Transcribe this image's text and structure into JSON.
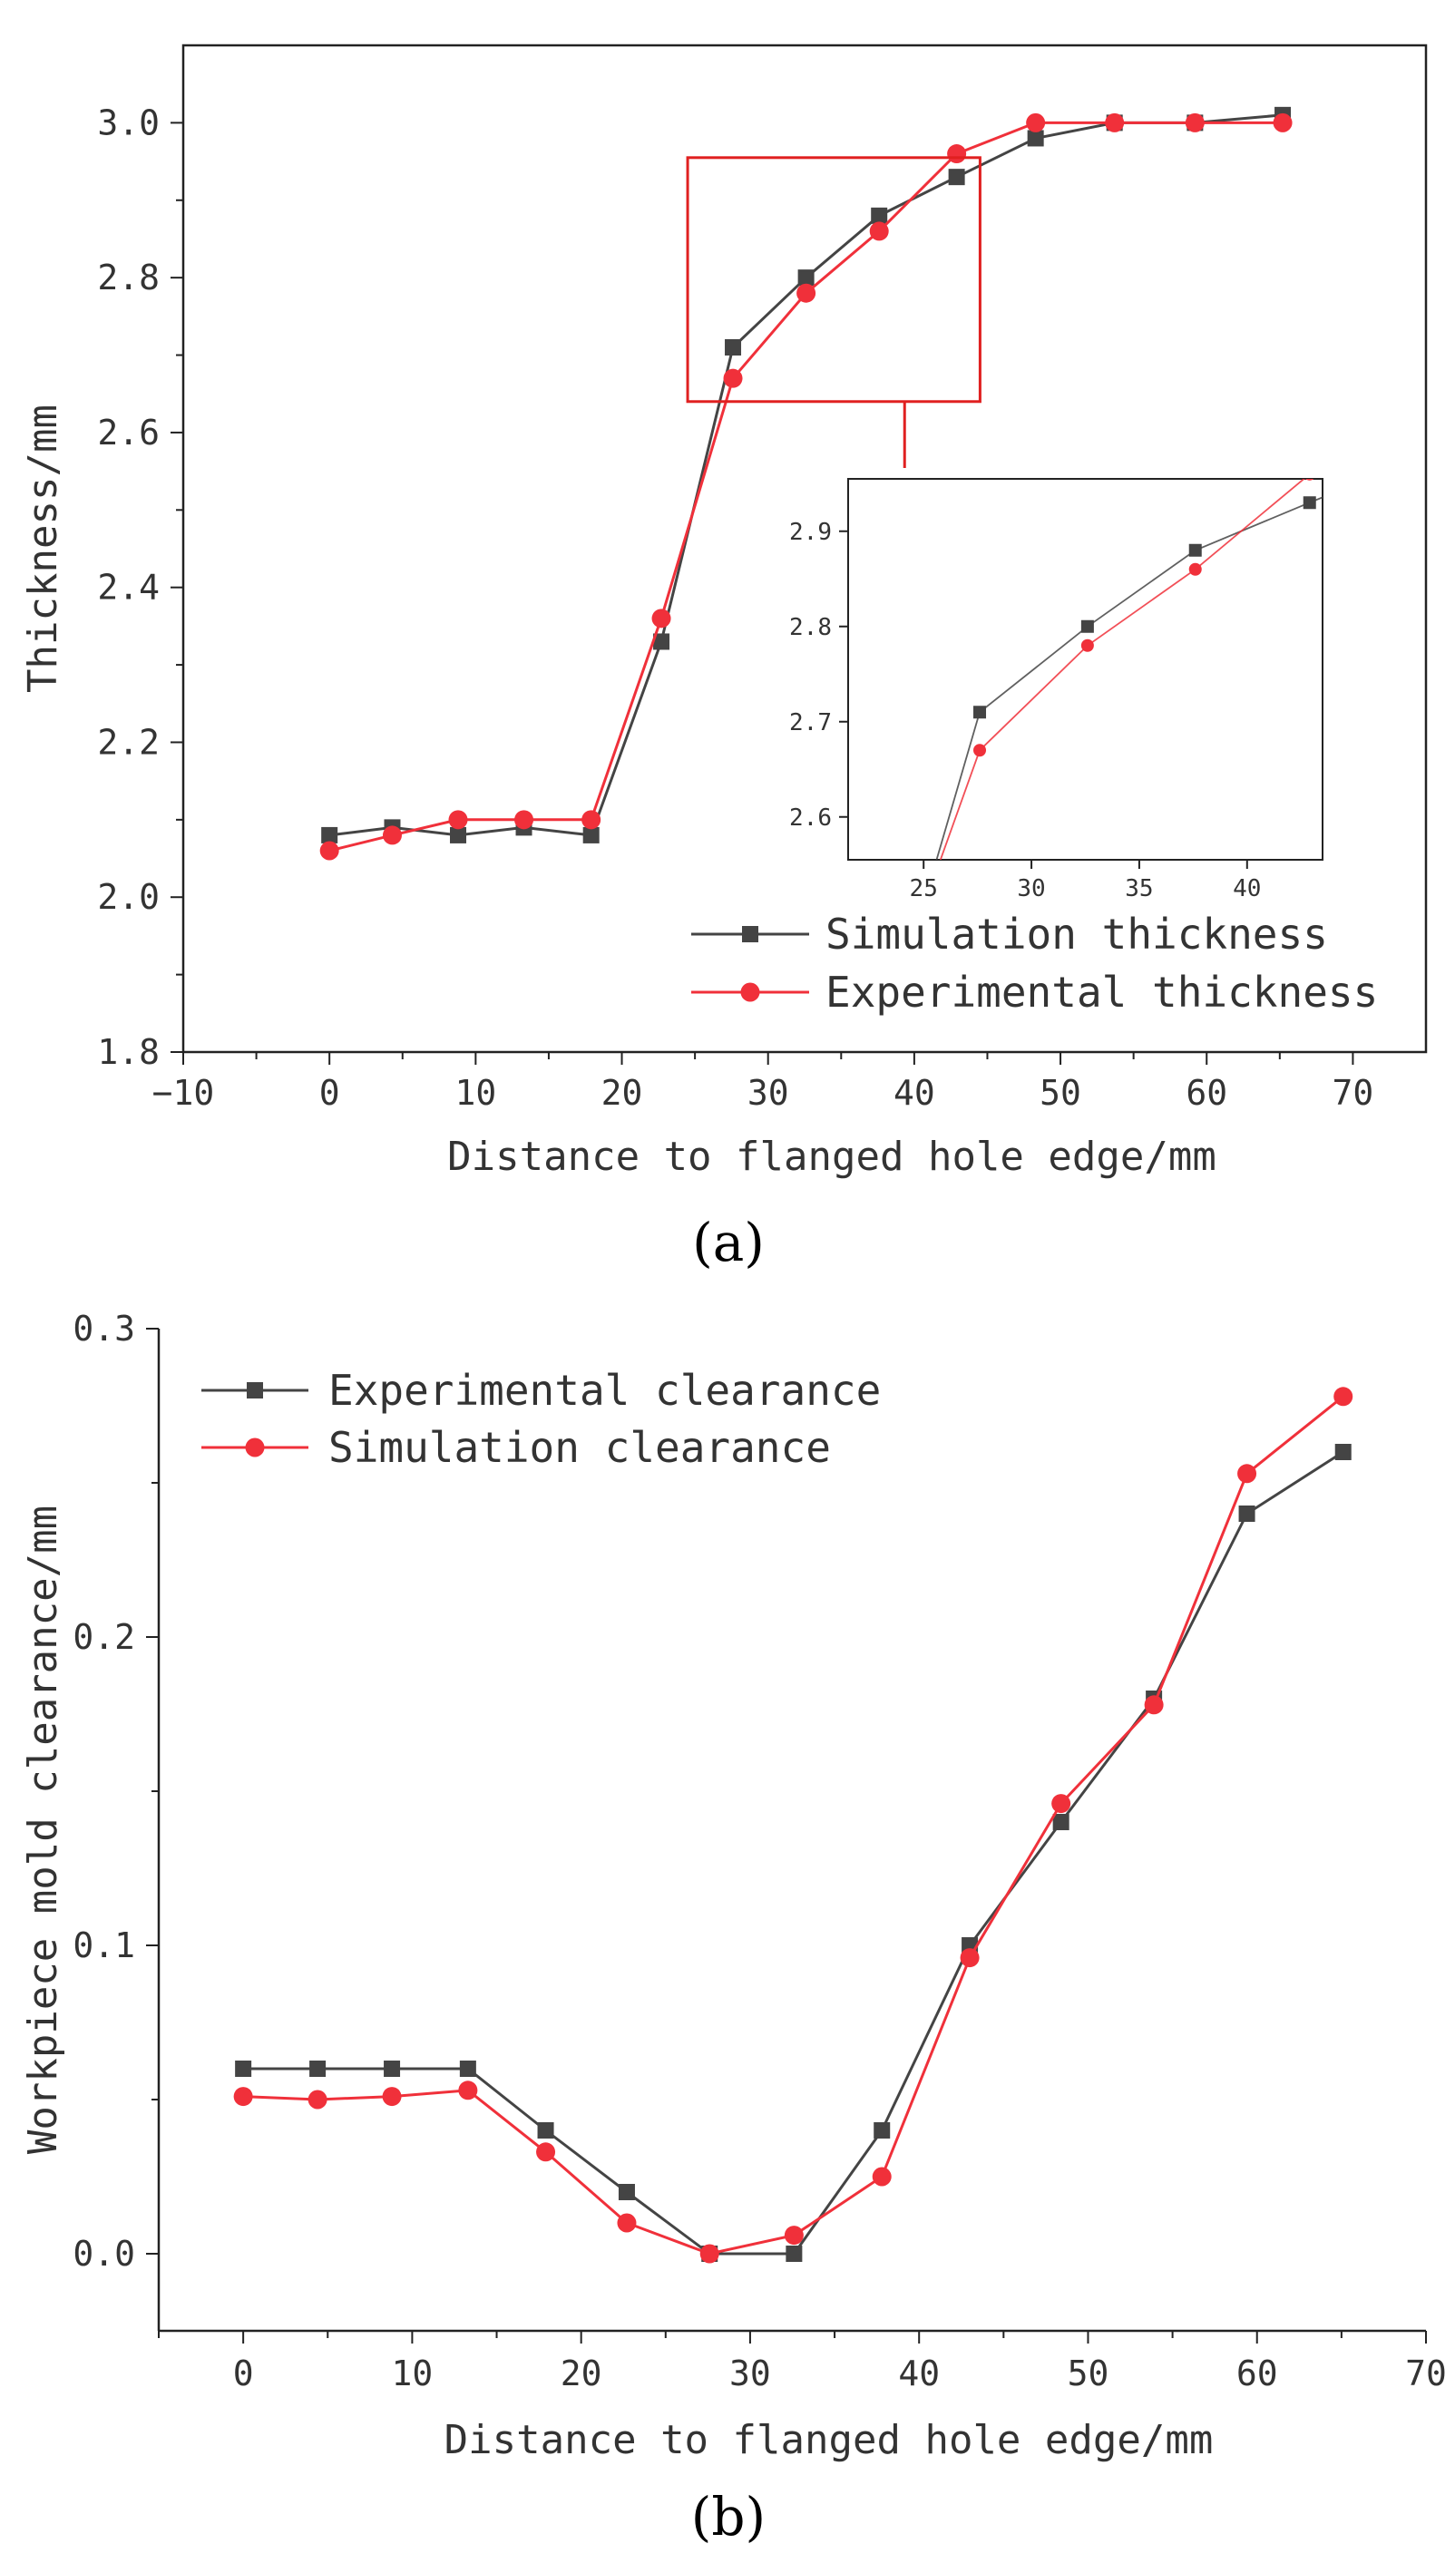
{
  "figure_captions": {
    "a": "(a)",
    "b": "(b)"
  },
  "colors": {
    "simulation": "#444444",
    "experimental": "#f0303a",
    "inset_box": "#e02020",
    "axis": "#222222"
  },
  "chart_data": [
    {
      "id": "a",
      "type": "line",
      "xlabel": "Distance to flanged hole edge/mm",
      "ylabel": "Thickness/mm",
      "xlim": [
        -10,
        75
      ],
      "ylim": [
        1.8,
        3.1
      ],
      "xticks": [
        -10,
        0,
        10,
        20,
        30,
        40,
        50,
        60,
        70
      ],
      "yticks": [
        1.8,
        2.0,
        2.2,
        2.4,
        2.6,
        2.8,
        3.0
      ],
      "xtick_labels": [
        "−10",
        "0",
        "10",
        "20",
        "30",
        "40",
        "50",
        "60",
        "70"
      ],
      "ytick_labels": [
        "1.8",
        "2.0",
        "2.2",
        "2.4",
        "2.6",
        "2.8",
        "3.0"
      ],
      "legend_position": "bottom-right",
      "series": [
        {
          "name": "Simulation thickness",
          "marker": "square",
          "x": [
            0,
            4.3,
            8.8,
            13.3,
            17.9,
            22.7,
            27.6,
            32.6,
            37.6,
            42.9,
            48.3,
            53.7,
            59.2,
            65.2
          ],
          "y": [
            2.08,
            2.09,
            2.08,
            2.09,
            2.08,
            2.33,
            2.71,
            2.8,
            2.88,
            2.93,
            2.98,
            3.0,
            3.0,
            3.01
          ]
        },
        {
          "name": "Experimental thickness",
          "marker": "circle",
          "x": [
            0,
            4.3,
            8.8,
            13.3,
            17.9,
            22.7,
            27.6,
            32.6,
            37.6,
            42.9,
            48.3,
            53.7,
            59.2,
            65.2
          ],
          "y": [
            2.06,
            2.08,
            2.1,
            2.1,
            2.1,
            2.36,
            2.67,
            2.78,
            2.86,
            2.96,
            3.0,
            3.0,
            3.0,
            3.0
          ]
        }
      ],
      "inset": {
        "xlim": [
          21.5,
          43.5
        ],
        "ylim": [
          2.555,
          2.955
        ],
        "xticks": [
          25,
          30,
          35,
          40
        ],
        "yticks": [
          2.6,
          2.7,
          2.8,
          2.9
        ],
        "xtick_labels": [
          "25",
          "30",
          "35",
          "40"
        ],
        "ytick_labels": [
          "2.6",
          "2.7",
          "2.8",
          "2.9"
        ],
        "zoom_region": {
          "x": [
            24.5,
            44.5
          ],
          "y": [
            2.64,
            2.955
          ]
        }
      }
    },
    {
      "id": "b",
      "type": "line",
      "xlabel": "Distance to flanged hole edge/mm",
      "ylabel": "Workpiece mold clearance/mm",
      "xlim": [
        -5,
        70
      ],
      "ylim": [
        -0.025,
        0.3
      ],
      "xticks": [
        0,
        10,
        20,
        30,
        40,
        50,
        60,
        70
      ],
      "yticks": [
        0.0,
        0.1,
        0.2,
        0.3
      ],
      "xtick_labels": [
        "0",
        "10",
        "20",
        "30",
        "40",
        "50",
        "60",
        "70"
      ],
      "ytick_labels": [
        "0.0",
        "0.1",
        "0.2",
        "0.3"
      ],
      "legend_position": "top-left",
      "series": [
        {
          "name": "Experimental clearance",
          "marker": "square",
          "x": [
            0,
            4.4,
            8.8,
            13.3,
            17.9,
            22.7,
            27.6,
            32.6,
            37.8,
            43.0,
            48.4,
            53.9,
            59.4,
            65.1
          ],
          "y": [
            0.06,
            0.06,
            0.06,
            0.06,
            0.04,
            0.02,
            0.0,
            0.0,
            0.04,
            0.1,
            0.14,
            0.18,
            0.24,
            0.26
          ]
        },
        {
          "name": "Simulation clearance",
          "marker": "circle",
          "x": [
            0,
            4.4,
            8.8,
            13.3,
            17.9,
            22.7,
            27.6,
            32.6,
            37.8,
            43.0,
            48.4,
            53.9,
            59.4,
            65.1
          ],
          "y": [
            0.051,
            0.05,
            0.051,
            0.053,
            0.033,
            0.01,
            0.0,
            0.006,
            0.025,
            0.096,
            0.146,
            0.178,
            0.253,
            0.278
          ]
        }
      ]
    }
  ]
}
